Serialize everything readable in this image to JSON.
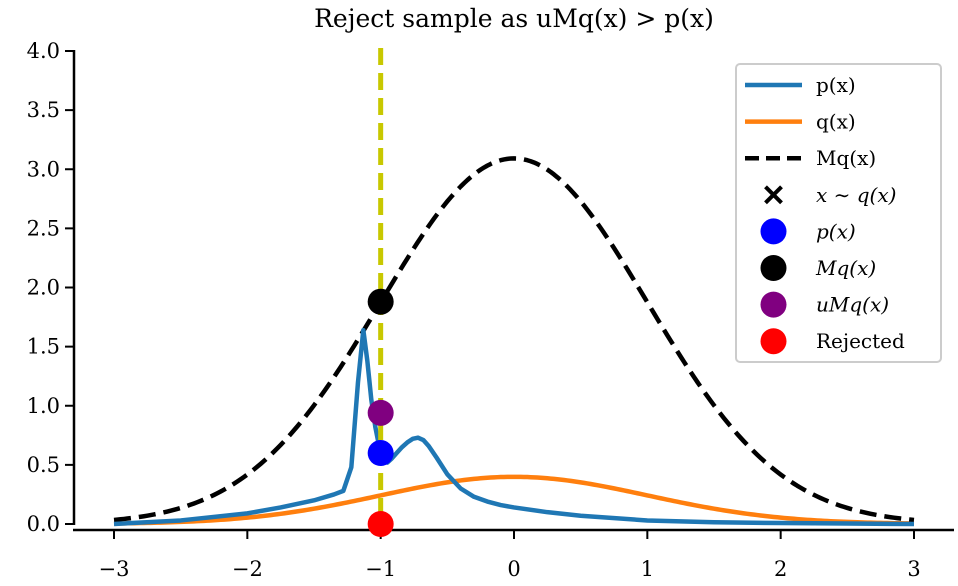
{
  "chart_data": {
    "type": "line",
    "title": "Reject sample as uMq(x) > p(x)",
    "xlabel": "",
    "ylabel": "",
    "xlim": [
      -3.0,
      3.0
    ],
    "ylim": [
      0.0,
      4.0
    ],
    "xticks": [
      -3,
      -2,
      -1,
      0,
      1,
      2,
      3
    ],
    "xtick_labels": [
      "−3",
      "−2",
      "−1",
      "0",
      "1",
      "2",
      "3"
    ],
    "yticks": [
      0.0,
      0.5,
      1.0,
      1.5,
      2.0,
      2.5,
      3.0,
      3.5,
      4.0
    ],
    "ytick_labels": [
      "0.0",
      "0.5",
      "1.0",
      "1.5",
      "2.0",
      "2.5",
      "3.0",
      "3.5",
      "4.0"
    ],
    "grid": false,
    "legend_position": "top-right",
    "series": [
      {
        "name": "p(x)",
        "kind": "line",
        "color": "#1f77b4",
        "style": "solid",
        "x": [
          -3.0,
          -2.5,
          -2.0,
          -1.75,
          -1.5,
          -1.35,
          -1.28,
          -1.22,
          -1.17,
          -1.13,
          -1.1,
          -1.07,
          -1.04,
          -1.01,
          -0.98,
          -0.95,
          -0.92,
          -0.88,
          -0.84,
          -0.8,
          -0.76,
          -0.72,
          -0.68,
          -0.64,
          -0.58,
          -0.5,
          -0.4,
          -0.3,
          -0.2,
          -0.1,
          0.0,
          0.25,
          0.5,
          1.0,
          1.5,
          2.0,
          2.5,
          3.0
        ],
        "y": [
          0.0,
          0.03,
          0.09,
          0.14,
          0.2,
          0.25,
          0.28,
          0.48,
          1.2,
          1.64,
          1.38,
          1.05,
          0.82,
          0.65,
          0.55,
          0.52,
          0.55,
          0.6,
          0.65,
          0.69,
          0.72,
          0.73,
          0.71,
          0.66,
          0.56,
          0.42,
          0.3,
          0.23,
          0.19,
          0.16,
          0.14,
          0.1,
          0.07,
          0.03,
          0.015,
          0.008,
          0.004,
          0.0
        ]
      },
      {
        "name": "q(x)",
        "kind": "line",
        "color": "#ff7f0e",
        "style": "solid",
        "function": "normal_pdf",
        "mean": 0,
        "std": 1
      },
      {
        "name": "Mq(x)",
        "kind": "line",
        "color": "#000000",
        "style": "dashed",
        "function": "scaled_normal_pdf",
        "scale": 7.75,
        "mean": 0,
        "std": 1
      },
      {
        "name": "x ∼ q(x)",
        "kind": "marker-x",
        "color": "#000000",
        "x": [
          -1.0
        ],
        "y": [
          0.0
        ]
      },
      {
        "name": "p(x)",
        "kind": "marker-dot",
        "color": "#0000ff",
        "x": [
          -1.0
        ],
        "y": [
          0.6
        ]
      },
      {
        "name": "Mq(x)",
        "kind": "marker-dot",
        "color": "#000000",
        "x": [
          -1.0
        ],
        "y": [
          1.88
        ]
      },
      {
        "name": "uMq(x)",
        "kind": "marker-dot",
        "color": "#800080",
        "x": [
          -1.0
        ],
        "y": [
          0.94
        ]
      },
      {
        "name": "Rejected",
        "kind": "marker-dot",
        "color": "#ff0000",
        "x": [
          -1.0
        ],
        "y": [
          0.0
        ]
      }
    ],
    "vline": {
      "x": -1.0,
      "color": "#c8c800",
      "style": "dashed"
    },
    "legend": [
      {
        "label": "p(x)",
        "kind": "line",
        "color": "#1f77b4",
        "math": false
      },
      {
        "label": "q(x)",
        "kind": "line",
        "color": "#ff7f0e",
        "math": false
      },
      {
        "label": "Mq(x)",
        "kind": "dashed",
        "color": "#000000",
        "math": false
      },
      {
        "label": "x ∼ q(x)",
        "kind": "marker-x",
        "color": "#000000",
        "math": true
      },
      {
        "label": "p(x)",
        "kind": "marker-dot",
        "color": "#0000ff",
        "math": true
      },
      {
        "label": "Mq(x)",
        "kind": "marker-dot",
        "color": "#000000",
        "math": true
      },
      {
        "label": "uMq(x)",
        "kind": "marker-dot",
        "color": "#800080",
        "math": true
      },
      {
        "label": "Rejected",
        "kind": "marker-dot",
        "color": "#ff0000",
        "math": false
      }
    ]
  }
}
